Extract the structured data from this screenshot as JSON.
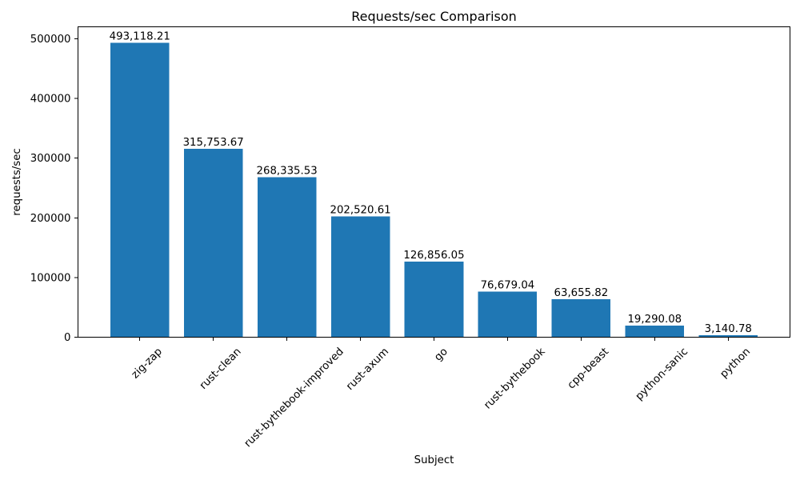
{
  "chart_data": {
    "type": "bar",
    "title": "Requests/sec Comparison",
    "xlabel": "Subject",
    "ylabel": "requests/sec",
    "categories": [
      "zig-zap",
      "rust-clean",
      "rust-bythebook-improved",
      "rust-axum",
      "go",
      "rust-bythebook",
      "cpp-beast",
      "python-sanic",
      "python"
    ],
    "values": [
      493118.21,
      315753.67,
      268335.53,
      202520.61,
      126856.05,
      76679.04,
      63655.82,
      19290.08,
      3140.78
    ],
    "value_labels": [
      "493,118.21",
      "315,753.67",
      "268,335.53",
      "202,520.61",
      "126,856.05",
      "76,679.04",
      "63,655.82",
      "19,290.08",
      "3,140.78"
    ],
    "yticks": [
      0,
      100000,
      200000,
      300000,
      400000,
      500000
    ],
    "ytick_labels": [
      "0",
      "100000",
      "200000",
      "300000",
      "400000",
      "500000"
    ],
    "ylim": [
      0,
      520000
    ],
    "xtick_rotation_deg": 45,
    "bar_color": "#1f77b4",
    "text_color": "#000000",
    "spine_color": "#000000",
    "background_color": "#ffffff",
    "grid": false,
    "legend": null
  }
}
